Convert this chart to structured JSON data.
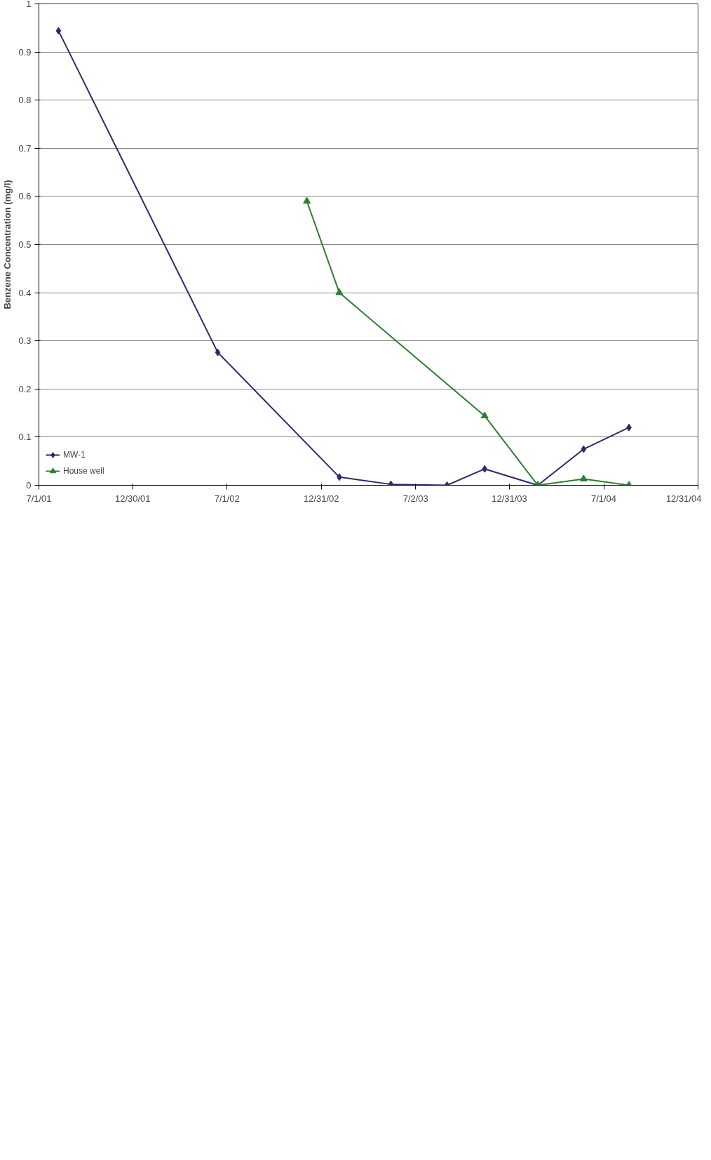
{
  "chart_data": {
    "type": "line",
    "ylabel": "Benzene Concentration (mg/l)",
    "xlim": [
      "2001-07-01",
      "2004-12-31"
    ],
    "xticks": [
      {
        "value": "2001-07-01",
        "label": "7/1/01"
      },
      {
        "value": "2001-12-30",
        "label": "12/30/01"
      },
      {
        "value": "2002-07-01",
        "label": "7/1/02"
      },
      {
        "value": "2002-12-31",
        "label": "12/31/02"
      },
      {
        "value": "2003-07-02",
        "label": "7/2/03"
      },
      {
        "value": "2003-12-31",
        "label": "12/31/03"
      },
      {
        "value": "2004-07-01",
        "label": "7/1/04"
      },
      {
        "value": "2004-12-31",
        "label": "12/31/04"
      }
    ],
    "ylim": [
      0,
      1
    ],
    "yticks": [
      0,
      0.1,
      0.2,
      0.3,
      0.4,
      0.5,
      0.6,
      0.7,
      0.8,
      0.9,
      1
    ],
    "grid": "y",
    "legend": "bottom left",
    "line_style": "solid",
    "series": [
      {
        "name": "MW-1",
        "color": "#2b2b6b",
        "marker": "diamond",
        "x": [
          "2001-08-08",
          "2002-06-13",
          "2003-02-04",
          "2003-05-15",
          "2003-09-01",
          "2003-11-13",
          "2004-02-24",
          "2004-05-23",
          "2004-08-19"
        ],
        "values": [
          0.944,
          0.276,
          0.017,
          0.002,
          0,
          0.034,
          0,
          0.075,
          0.12
        ]
      },
      {
        "name": "House well",
        "color": "#2e7d32",
        "marker": "triangle",
        "x": [
          "2002-12-03",
          "2003-02-04",
          "2003-11-13",
          "2004-02-24",
          "2004-05-23",
          "2004-08-19"
        ],
        "values": [
          0.59,
          0.4,
          0.144,
          0,
          0.013,
          0
        ]
      }
    ]
  }
}
